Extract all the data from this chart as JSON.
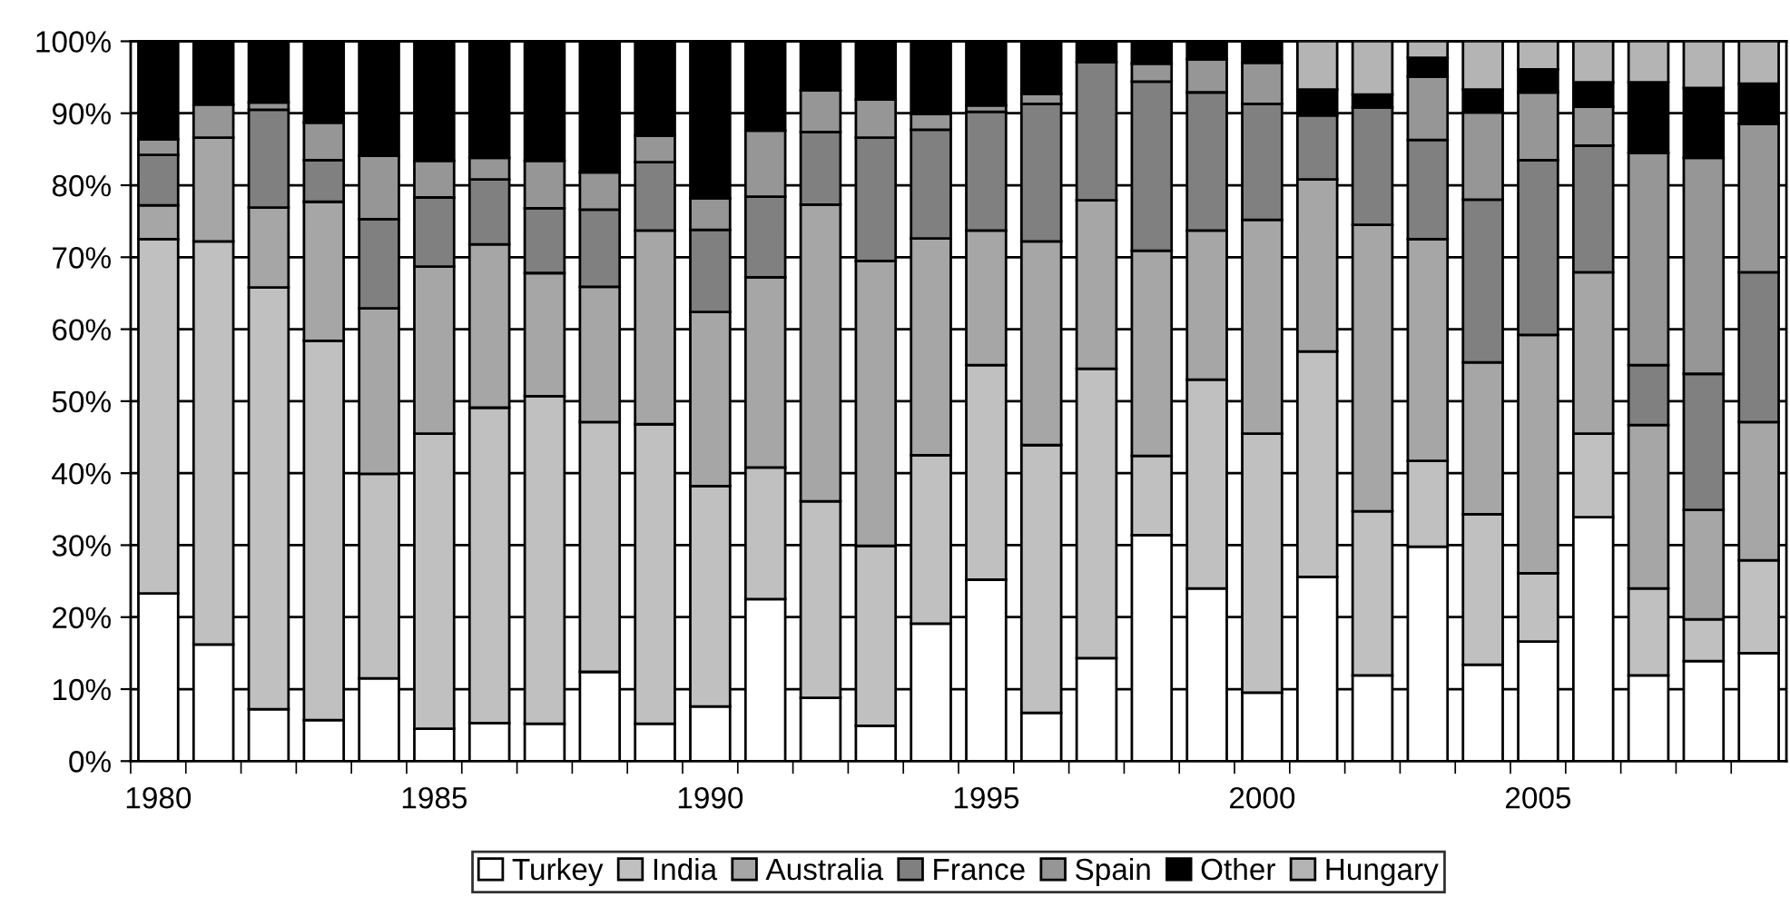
{
  "chart_data": {
    "type": "bar",
    "stacked": true,
    "x": [
      1980,
      1981,
      1982,
      1983,
      1984,
      1985,
      1986,
      1987,
      1988,
      1989,
      1990,
      1991,
      1992,
      1993,
      1994,
      1995,
      1996,
      1997,
      1998,
      1999,
      2000,
      2001,
      2002,
      2003,
      2004,
      2005,
      2006,
      2007,
      2008,
      2009
    ],
    "series": [
      {
        "name": "Turkey",
        "color": "#ffffff",
        "values": [
          23.3,
          16.2,
          7.2,
          5.7,
          11.5,
          4.5,
          5.3,
          5.2,
          12.4,
          5.2,
          7.6,
          22.5,
          8.8,
          4.9,
          19.1,
          25.2,
          6.7,
          14.3,
          31.4,
          24.0,
          9.5,
          25.6,
          11.9,
          29.8,
          13.4,
          16.6,
          33.9,
          11.9,
          13.9,
          15.0
        ]
      },
      {
        "name": "India",
        "color": "#c0c0c0",
        "values": [
          49.2,
          56.0,
          58.6,
          52.7,
          28.4,
          41.0,
          43.8,
          45.5,
          34.7,
          41.6,
          30.6,
          18.3,
          27.3,
          25.0,
          23.4,
          29.8,
          37.2,
          40.2,
          11.0,
          29.0,
          36.0,
          31.3,
          22.8,
          11.9,
          20.9,
          9.5,
          11.6,
          12.1,
          5.8,
          12.9
        ]
      },
      {
        "name": "Australia",
        "color": "#a6a6a6",
        "values": [
          4.7,
          14.4,
          11.1,
          19.3,
          23.0,
          23.2,
          22.7,
          17.1,
          18.8,
          26.9,
          24.2,
          26.4,
          41.2,
          39.6,
          30.1,
          18.7,
          28.3,
          23.4,
          28.5,
          20.7,
          29.7,
          23.9,
          39.8,
          30.8,
          21.1,
          33.1,
          22.4,
          22.7,
          15.2,
          19.2
        ]
      },
      {
        "name": "France",
        "color": "#808080",
        "values": [
          7.0,
          0,
          13.6,
          5.8,
          12.4,
          9.6,
          9.0,
          9.0,
          10.7,
          9.5,
          11.4,
          11.2,
          10.1,
          17.1,
          15.1,
          16.5,
          19.1,
          19.2,
          23.5,
          19.2,
          16.1,
          8.9,
          16.3,
          13.8,
          22.6,
          24.3,
          17.6,
          8.3,
          18.9,
          20.8
        ]
      },
      {
        "name": "Spain",
        "color": "#969696",
        "values": [
          2.2,
          4.6,
          1.0,
          5.2,
          8.8,
          5.1,
          3.0,
          6.6,
          5.2,
          3.7,
          4.4,
          9.2,
          5.8,
          5.3,
          2.2,
          0.9,
          1.4,
          0,
          2.5,
          4.6,
          5.7,
          0,
          0,
          8.8,
          12.1,
          9.4,
          5.4,
          29.5,
          30.0,
          20.6
        ]
      },
      {
        "name": "Other",
        "color": "#000000",
        "values": [
          13.6,
          8.8,
          8.5,
          11.3,
          15.9,
          16.6,
          16.2,
          16.6,
          18.2,
          13.1,
          21.8,
          12.4,
          6.8,
          8.1,
          10.1,
          8.9,
          7.3,
          2.9,
          3.1,
          2.5,
          3.0,
          3.6,
          1.8,
          2.6,
          3.2,
          3.2,
          3.4,
          9.8,
          9.7,
          5.6
        ]
      },
      {
        "name": "Hungary",
        "color": "#b4b4b4",
        "values": [
          0,
          0,
          0,
          0,
          0,
          0,
          0,
          0,
          0,
          0,
          0,
          0,
          0,
          0,
          0,
          0,
          0,
          0,
          0,
          0,
          0,
          6.7,
          7.4,
          2.3,
          6.7,
          3.9,
          5.7,
          5.7,
          6.5,
          5.9
        ]
      }
    ],
    "xlim": [
      1979.5,
      2009.5
    ],
    "xticks": [
      1980,
      1985,
      1990,
      1995,
      2000,
      2005,
      {
        "value": 1979.5,
        "label": null
      },
      {
        "value": 1980.5,
        "label": null
      },
      {
        "value": 1981.5,
        "label": null
      },
      {
        "value": 1982.5,
        "label": null
      },
      {
        "value": 1983.5,
        "label": null
      },
      {
        "value": 1984.5,
        "label": null
      },
      {
        "value": 1985.5,
        "label": null
      },
      {
        "value": 1986.5,
        "label": null
      },
      {
        "value": 1987.5,
        "label": null
      },
      {
        "value": 1988.5,
        "label": null
      },
      {
        "value": 1989.5,
        "label": null
      },
      {
        "value": 1990.5,
        "label": null
      },
      {
        "value": 1991.5,
        "label": null
      },
      {
        "value": 1992.5,
        "label": null
      },
      {
        "value": 1993.5,
        "label": null
      },
      {
        "value": 1994.5,
        "label": null
      },
      {
        "value": 1995.5,
        "label": null
      },
      {
        "value": 1996.5,
        "label": null
      },
      {
        "value": 1997.5,
        "label": null
      },
      {
        "value": 1998.5,
        "label": null
      },
      {
        "value": 1999.5,
        "label": null
      },
      {
        "value": 2000.5,
        "label": null
      },
      {
        "value": 2001.5,
        "label": null
      },
      {
        "value": 2002.5,
        "label": null
      },
      {
        "value": 2003.5,
        "label": null
      },
      {
        "value": 2004.5,
        "label": null
      },
      {
        "value": 2005.5,
        "label": null
      },
      {
        "value": 2006.5,
        "label": null
      },
      {
        "value": 2007.5,
        "label": null
      },
      {
        "value": 2008.5,
        "label": null
      }
    ],
    "ylim": [
      0,
      100
    ],
    "yticks": [
      {
        "value": 0,
        "label": "0%"
      },
      {
        "value": 10,
        "label": "10%"
      },
      {
        "value": 20,
        "label": "20%"
      },
      {
        "value": 30,
        "label": "30%"
      },
      {
        "value": 40,
        "label": "40%"
      },
      {
        "value": 50,
        "label": "50%"
      },
      {
        "value": 60,
        "label": "60%"
      },
      {
        "value": 70,
        "label": "70%"
      },
      {
        "value": 80,
        "label": "80%"
      },
      {
        "value": 90,
        "label": "90%"
      },
      {
        "value": 100,
        "label": "100%"
      }
    ],
    "grid": "y",
    "legend": "bottom"
  }
}
